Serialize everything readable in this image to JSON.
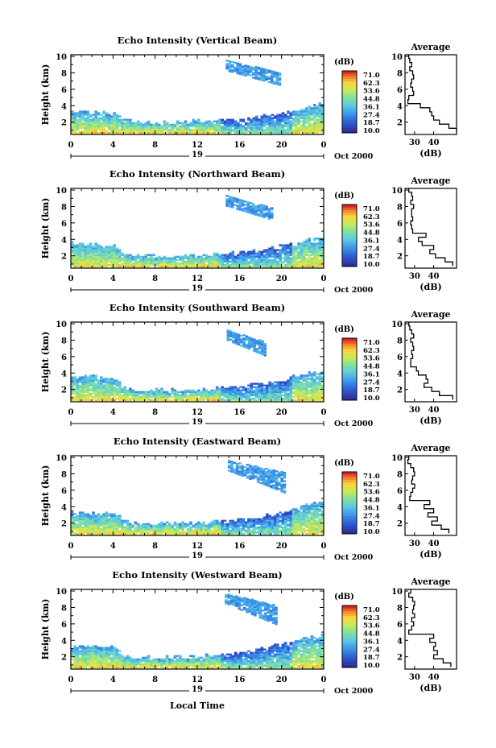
{
  "figure": {
    "xlabel_bottom": "Local Time",
    "date_label": "Oct 2000",
    "day_label": "19",
    "colorbar_unit": "(dB)",
    "colorbar_ticks": [
      "71.0",
      "62.3",
      "53.6",
      "44.8",
      "36.1",
      "27.4",
      "18.7",
      "10.0"
    ],
    "avg_title": "Average",
    "avg_xlabel": "(dB)"
  },
  "chart_data": [
    {
      "type": "heatmap",
      "title": "Echo Intensity (Vertical Beam)",
      "ylabel": "Height (km)",
      "xlabel": "Local Time",
      "x_ticks": [
        "0",
        "4",
        "8",
        "12",
        "16",
        "20",
        "0"
      ],
      "y_ticks": [
        "2",
        "4",
        "6",
        "8",
        "10"
      ],
      "xlim": [
        0,
        24
      ],
      "ylim": [
        0.5,
        10.2
      ],
      "colorbar": {
        "unit": "dB",
        "range": [
          10.0,
          71.0
        ],
        "ticks": [
          10.0,
          18.7,
          27.4,
          36.1,
          44.8,
          53.6,
          62.3,
          71.0
        ]
      },
      "cloud_top_km": [
        [
          0,
          3.2
        ],
        [
          2,
          3.1
        ],
        [
          4,
          3.0
        ],
        [
          5,
          2.3
        ],
        [
          6,
          1.9
        ],
        [
          8,
          1.9
        ],
        [
          12,
          2.0
        ],
        [
          16,
          2.2
        ],
        [
          20,
          3.0
        ],
        [
          22,
          3.7
        ],
        [
          24,
          4.3
        ]
      ],
      "upper_layer": {
        "time": [
          14.7,
          19.8
        ],
        "height_km": [
          6.6,
          9.4
        ]
      },
      "average_profile": {
        "xlabel": "(dB)",
        "x_ticks": [
          "30",
          "40"
        ],
        "height_km": [
          10,
          9.5,
          9,
          8.5,
          8,
          7.5,
          7,
          6.5,
          6,
          5.5,
          5,
          4.5,
          4,
          3.5,
          3,
          2.5,
          2,
          1.5,
          1
        ],
        "db": [
          27,
          27.5,
          28.5,
          27.5,
          29,
          29.5,
          28.5,
          28,
          29,
          29.5,
          27,
          26.5,
          33,
          38,
          39,
          40,
          43,
          48,
          52
        ]
      }
    },
    {
      "type": "heatmap",
      "title": "Echo Intensity (Northward Beam)",
      "ylabel": "Height (km)",
      "xlabel": "Local Time",
      "x_ticks": [
        "0",
        "4",
        "8",
        "12",
        "16",
        "20",
        "0"
      ],
      "y_ticks": [
        "2",
        "4",
        "6",
        "8",
        "10"
      ],
      "xlim": [
        0,
        24
      ],
      "ylim": [
        0.5,
        10.2
      ],
      "colorbar": {
        "unit": "dB",
        "range": [
          10.0,
          71.0
        ],
        "ticks": [
          10.0,
          18.7,
          27.4,
          36.1,
          44.8,
          53.6,
          62.3,
          71.0
        ]
      },
      "cloud_top_km": [
        [
          0,
          3.4
        ],
        [
          2,
          3.3
        ],
        [
          4,
          3.2
        ],
        [
          5,
          2.3
        ],
        [
          6,
          1.9
        ],
        [
          8,
          1.9
        ],
        [
          12,
          2.0
        ],
        [
          16,
          2.3
        ],
        [
          20,
          3.1
        ],
        [
          22,
          3.8
        ],
        [
          24,
          4.4
        ]
      ],
      "upper_layer": {
        "time": [
          14.7,
          19.0
        ],
        "height_km": [
          6.5,
          9.2
        ]
      },
      "average_profile": {
        "xlabel": "(dB)",
        "x_ticks": [
          "30",
          "40"
        ],
        "height_km": [
          10,
          9.5,
          9,
          8.5,
          8,
          7.5,
          7,
          6.5,
          6,
          5.5,
          5,
          4.5,
          4,
          3.5,
          3,
          2.5,
          2,
          1.5,
          1
        ],
        "db": [
          27,
          28.5,
          29,
          28,
          29.5,
          28.5,
          28.5,
          29,
          28,
          28.5,
          29,
          36,
          32,
          34,
          40,
          38,
          41,
          46,
          50
        ]
      }
    },
    {
      "type": "heatmap",
      "title": "Echo Intensity (Southward Beam)",
      "ylabel": "Height (km)",
      "xlabel": "Local Time",
      "x_ticks": [
        "0",
        "4",
        "8",
        "12",
        "16",
        "20",
        "0"
      ],
      "y_ticks": [
        "2",
        "4",
        "6",
        "8",
        "10"
      ],
      "xlim": [
        0,
        24
      ],
      "ylim": [
        0.5,
        10.2
      ],
      "colorbar": {
        "unit": "dB",
        "range": [
          10.0,
          71.0
        ],
        "ticks": [
          10.0,
          18.7,
          27.4,
          36.1,
          44.8,
          53.6,
          62.3,
          71.0
        ]
      },
      "cloud_top_km": [
        [
          0,
          3.4
        ],
        [
          2,
          3.5
        ],
        [
          4,
          3.3
        ],
        [
          5,
          2.2
        ],
        [
          6,
          1.8
        ],
        [
          8,
          1.8
        ],
        [
          12,
          1.9
        ],
        [
          16,
          2.2
        ],
        [
          20,
          3.0
        ],
        [
          22,
          3.8
        ],
        [
          24,
          4.4
        ]
      ],
      "upper_layer": {
        "time": [
          14.8,
          18.4
        ],
        "height_km": [
          6.2,
          9.1
        ]
      },
      "average_profile": {
        "xlabel": "(dB)",
        "x_ticks": [
          "30",
          "40"
        ],
        "height_km": [
          10,
          9.5,
          9,
          8.5,
          8,
          7.5,
          7,
          6.5,
          6,
          5.5,
          5,
          4.5,
          4,
          3.5,
          3,
          2.5,
          2,
          1.5,
          1
        ],
        "db": [
          27,
          27.5,
          28.5,
          29.5,
          28,
          29,
          29.5,
          28.5,
          29,
          28,
          28,
          31,
          32,
          36,
          37,
          35,
          39,
          43,
          50
        ]
      }
    },
    {
      "type": "heatmap",
      "title": "Echo Intensity (Eastward Beam)",
      "ylabel": "Height (km)",
      "xlabel": "Local Time",
      "x_ticks": [
        "0",
        "4",
        "8",
        "12",
        "16",
        "20",
        "0"
      ],
      "y_ticks": [
        "2",
        "4",
        "6",
        "8",
        "10"
      ],
      "xlim": [
        0,
        24
      ],
      "ylim": [
        0.5,
        10.2
      ],
      "colorbar": {
        "unit": "dB",
        "range": [
          10.0,
          71.0
        ],
        "ticks": [
          10.0,
          18.7,
          27.4,
          36.1,
          44.8,
          53.6,
          62.3,
          71.0
        ]
      },
      "cloud_top_km": [
        [
          0,
          3.2
        ],
        [
          2,
          3.1
        ],
        [
          4,
          3.1
        ],
        [
          5,
          2.2
        ],
        [
          6,
          1.9
        ],
        [
          8,
          1.9
        ],
        [
          12,
          2.0
        ],
        [
          16,
          2.3
        ],
        [
          20,
          3.2
        ],
        [
          22,
          4.0
        ],
        [
          24,
          4.6
        ]
      ],
      "upper_layer": {
        "time": [
          14.9,
          20.2
        ],
        "height_km": [
          5.8,
          9.5
        ]
      },
      "average_profile": {
        "xlabel": "(dB)",
        "x_ticks": [
          "30",
          "40"
        ],
        "height_km": [
          10,
          9.5,
          9,
          8.5,
          8,
          7.5,
          7,
          6.5,
          6,
          5.5,
          5,
          4.5,
          4,
          3.5,
          3,
          2.5,
          2,
          1.5,
          1
        ],
        "db": [
          27,
          26.5,
          28,
          29.5,
          30,
          29,
          28.5,
          30,
          29,
          28,
          27.5,
          38,
          35,
          40,
          37,
          42,
          39,
          44,
          48
        ]
      }
    },
    {
      "type": "heatmap",
      "title": "Echo Intensity (Westward Beam)",
      "ylabel": "Height (km)",
      "xlabel": "Local Time",
      "x_ticks": [
        "0",
        "4",
        "8",
        "12",
        "16",
        "20",
        "0"
      ],
      "y_ticks": [
        "2",
        "4",
        "6",
        "8",
        "10"
      ],
      "xlim": [
        0,
        24
      ],
      "ylim": [
        0.5,
        10.2
      ],
      "colorbar": {
        "unit": "dB",
        "range": [
          10.0,
          71.0
        ],
        "ticks": [
          10.0,
          18.7,
          27.4,
          36.1,
          44.8,
          53.6,
          62.3,
          71.0
        ]
      },
      "cloud_top_km": [
        [
          0,
          3.0
        ],
        [
          2,
          3.3
        ],
        [
          4,
          3.1
        ],
        [
          5,
          2.0
        ],
        [
          6,
          1.8
        ],
        [
          8,
          1.8
        ],
        [
          12,
          1.9
        ],
        [
          16,
          2.3
        ],
        [
          20,
          3.4
        ],
        [
          22,
          4.1
        ],
        [
          24,
          4.5
        ]
      ],
      "upper_layer": {
        "time": [
          14.6,
          19.5
        ],
        "height_km": [
          6.0,
          9.6
        ]
      },
      "average_profile": {
        "xlabel": "(dB)",
        "x_ticks": [
          "30",
          "40"
        ],
        "height_km": [
          10,
          9.5,
          9,
          8.5,
          8,
          7.5,
          7,
          6.5,
          6,
          5.5,
          5,
          4.5,
          4,
          3.5,
          3,
          2.5,
          2,
          1.5,
          1
        ],
        "db": [
          28,
          27,
          29,
          30,
          29.5,
          29,
          30,
          28.5,
          29.5,
          28.5,
          27,
          40,
          38,
          41,
          40,
          42,
          40,
          45,
          49
        ]
      }
    }
  ]
}
